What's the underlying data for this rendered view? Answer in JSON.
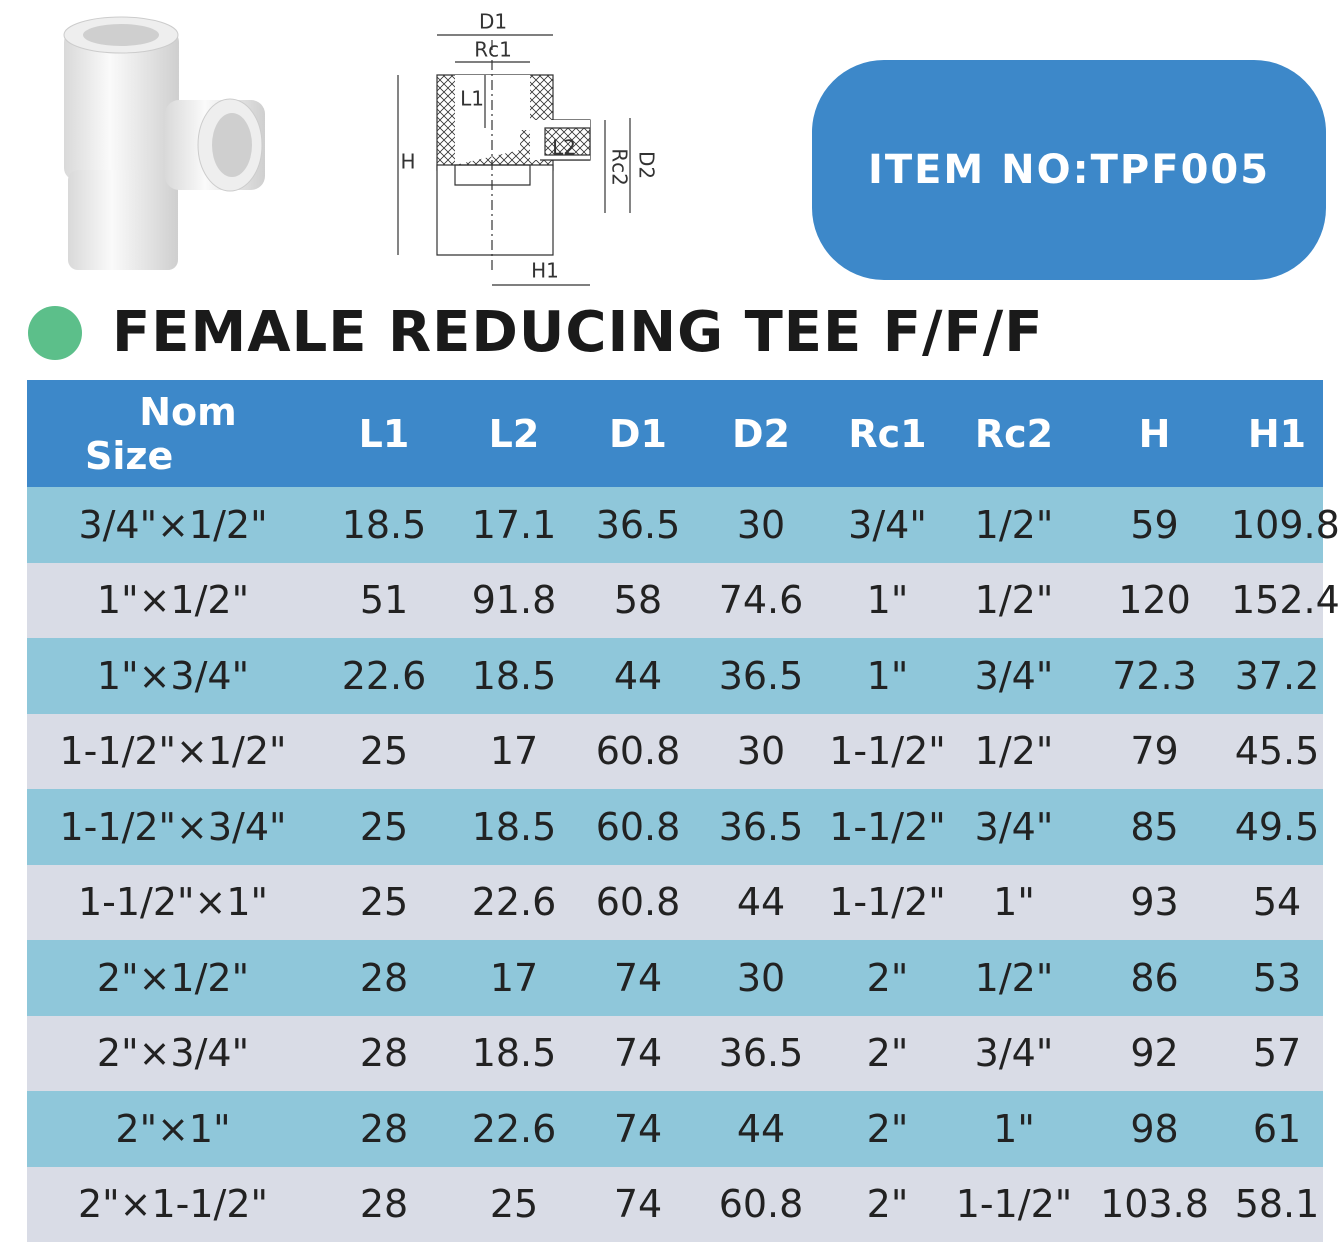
{
  "diagram": {
    "labels": [
      "D1",
      "Rc1",
      "L1",
      "L2",
      "H",
      "D2",
      "Rc2",
      "H1"
    ]
  },
  "item_no": "ITEM NO:TPF005",
  "title": "FEMALE REDUCING TEE F/F/F",
  "table": {
    "header": [
      [
        "Nom",
        "Size"
      ],
      "L1",
      "L2",
      "D1",
      "D2",
      "Rc1",
      "Rc2",
      "H",
      "H1"
    ],
    "rows": [
      [
        "3/4\"×1/2\"",
        "18.5",
        "17.1",
        "36.5",
        "30",
        "3/4\"",
        "1/2\"",
        "59",
        "109.8"
      ],
      [
        "1\"×1/2\"",
        "51",
        "91.8",
        "58",
        "74.6",
        "1\"",
        "1/2\"",
        "120",
        "152.4"
      ],
      [
        "1\"×3/4\"",
        "22.6",
        "18.5",
        "44",
        "36.5",
        "1\"",
        "3/4\"",
        "72.3",
        "37.2"
      ],
      [
        "1-1/2\"×1/2\"",
        "25",
        "17",
        "60.8",
        "30",
        "1-1/2\"",
        "1/2\"",
        "79",
        "45.5"
      ],
      [
        "1-1/2\"×3/4\"",
        "25",
        "18.5",
        "60.8",
        "36.5",
        "1-1/2\"",
        "3/4\"",
        "85",
        "49.5"
      ],
      [
        "1-1/2\"×1\"",
        "25",
        "22.6",
        "60.8",
        "44",
        "1-1/2\"",
        "1\"",
        "93",
        "54"
      ],
      [
        "2\"×1/2\"",
        "28",
        "17",
        "74",
        "30",
        "2\"",
        "1/2\"",
        "86",
        "53"
      ],
      [
        "2\"×3/4\"",
        "28",
        "18.5",
        "74",
        "36.5",
        "2\"",
        "3/4\"",
        "92",
        "57"
      ],
      [
        "2\"×1\"",
        "28",
        "22.6",
        "74",
        "44",
        "2\"",
        "1\"",
        "98",
        "61"
      ],
      [
        "2\"×1-1/2\"",
        "28",
        "25",
        "74",
        "60.8",
        "2\"",
        "1-1/2\"",
        "103.8",
        "58.1"
      ]
    ]
  }
}
